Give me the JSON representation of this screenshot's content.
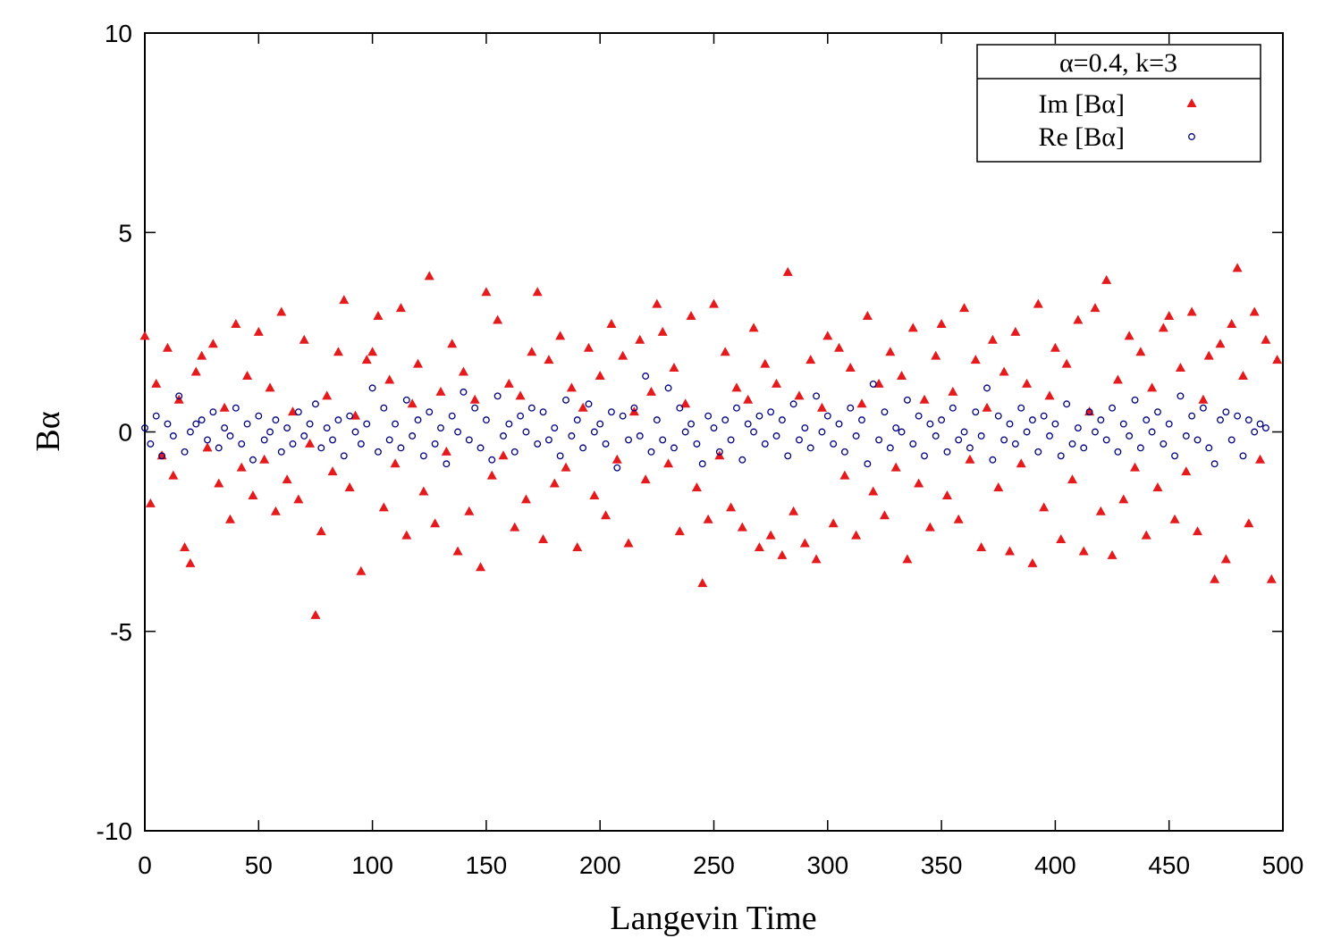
{
  "chart_data": {
    "type": "scatter",
    "xlabel": "Langevin Time",
    "ylabel": "Bα",
    "legend_title": "α=0.4, k=3",
    "legend": "top-right",
    "xlim": [
      0,
      500
    ],
    "xticks": [
      0,
      50,
      100,
      150,
      200,
      250,
      300,
      350,
      400,
      450,
      500
    ],
    "ylim": [
      -10,
      10
    ],
    "yticks": [
      -10,
      -5,
      0,
      5,
      10
    ],
    "x": [
      0,
      2.5,
      5,
      7.5,
      10,
      12.5,
      15,
      17.5,
      20,
      22.5,
      25,
      27.5,
      30,
      32.5,
      35,
      37.5,
      40,
      42.5,
      45,
      47.5,
      50,
      52.5,
      55,
      57.5,
      60,
      62.5,
      65,
      67.5,
      70,
      72.5,
      75,
      77.5,
      80,
      82.5,
      85,
      87.5,
      90,
      92.5,
      95,
      97.5,
      100,
      102.5,
      105,
      107.5,
      110,
      112.5,
      115,
      117.5,
      120,
      122.5,
      125,
      127.5,
      130,
      132.5,
      135,
      137.5,
      140,
      142.5,
      145,
      147.5,
      150,
      152.5,
      155,
      157.5,
      160,
      162.5,
      165,
      167.5,
      170,
      172.5,
      175,
      177.5,
      180,
      182.5,
      185,
      187.5,
      190,
      192.5,
      195,
      197.5,
      200,
      202.5,
      205,
      207.5,
      210,
      212.5,
      215,
      217.5,
      220,
      222.5,
      225,
      227.5,
      230,
      232.5,
      235,
      237.5,
      240,
      242.5,
      245,
      247.5,
      250,
      252.5,
      255,
      257.5,
      260,
      262.5,
      265,
      267.5,
      270,
      272.5,
      275,
      277.5,
      280,
      282.5,
      285,
      287.5,
      290,
      292.5,
      295,
      297.5,
      300,
      302.5,
      305,
      307.5,
      310,
      312.5,
      315,
      317.5,
      320,
      322.5,
      325,
      327.5,
      330,
      332.5,
      335,
      337.5,
      340,
      342.5,
      345,
      347.5,
      350,
      352.5,
      355,
      357.5,
      360,
      362.5,
      365,
      367.5,
      370,
      372.5,
      375,
      377.5,
      380,
      382.5,
      385,
      387.5,
      390,
      392.5,
      395,
      397.5,
      400,
      402.5,
      405,
      407.5,
      410,
      412.5,
      415,
      417.5,
      420,
      422.5,
      425,
      427.5,
      430,
      432.5,
      435,
      437.5,
      440,
      442.5,
      445,
      447.5,
      450,
      452.5,
      455,
      457.5,
      460,
      462.5,
      465,
      467.5,
      470,
      472.5,
      475,
      477.5,
      480,
      482.5,
      485,
      487.5,
      490,
      492.5,
      495,
      497.5
    ],
    "series": [
      {
        "name": "Im [Bα]",
        "color": "#e41a1c",
        "marker": "triangle",
        "values": [
          2.4,
          -1.8,
          1.2,
          -0.6,
          2.1,
          -1.1,
          0.8,
          -2.9,
          -3.3,
          1.5,
          1.9,
          -0.4,
          2.2,
          -1.3,
          0.6,
          -2.2,
          2.7,
          -0.9,
          1.4,
          -1.6,
          2.5,
          -0.7,
          1.1,
          -2.0,
          3.0,
          -1.2,
          0.5,
          -1.7,
          2.3,
          -0.3,
          -4.6,
          -2.5,
          0.9,
          -1.0,
          2.0,
          3.3,
          -1.4,
          0.4,
          -3.5,
          1.8,
          2.0,
          2.9,
          -1.9,
          1.3,
          -0.8,
          3.1,
          -2.6,
          0.7,
          1.7,
          -1.5,
          3.9,
          -2.3,
          1.0,
          -0.5,
          2.2,
          -3.0,
          1.5,
          -2.0,
          0.8,
          -3.4,
          3.5,
          -1.1,
          2.8,
          -0.6,
          1.2,
          -2.4,
          0.9,
          -1.7,
          2.0,
          3.5,
          -2.7,
          1.8,
          -1.3,
          2.4,
          -0.9,
          1.1,
          -2.9,
          0.6,
          2.1,
          -1.6,
          1.4,
          -2.1,
          2.7,
          -0.7,
          1.9,
          -2.8,
          0.5,
          2.3,
          -1.2,
          1.0,
          3.2,
          2.5,
          -0.8,
          1.6,
          -2.5,
          0.7,
          2.9,
          -1.4,
          -3.8,
          -2.2,
          3.2,
          -0.6,
          2.0,
          -1.9,
          1.1,
          -2.4,
          0.8,
          2.6,
          -2.9,
          1.7,
          -2.6,
          1.2,
          -3.1,
          4.0,
          -2.0,
          0.9,
          -2.8,
          1.8,
          -3.2,
          0.6,
          2.4,
          -2.3,
          2.1,
          -1.1,
          1.6,
          -2.6,
          0.7,
          2.9,
          -1.5,
          1.2,
          -2.1,
          2.0,
          -0.9,
          1.4,
          -3.2,
          2.6,
          -1.3,
          0.8,
          -2.4,
          1.9,
          2.7,
          -1.6,
          1.0,
          -2.2,
          3.1,
          -0.7,
          1.8,
          -2.9,
          0.6,
          2.3,
          -1.4,
          1.5,
          -3.0,
          2.5,
          -0.8,
          1.2,
          -3.3,
          3.2,
          -1.9,
          0.9,
          2.1,
          -2.7,
          1.7,
          -1.2,
          2.8,
          -3.0,
          0.5,
          3.1,
          -2.0,
          3.8,
          -3.1,
          1.3,
          -1.7,
          2.4,
          -0.9,
          2.0,
          -2.6,
          1.1,
          -1.4,
          2.6,
          2.9,
          -2.2,
          1.6,
          -1.0,
          3.0,
          -2.5,
          0.8,
          1.9,
          -3.7,
          2.2,
          -3.2,
          2.7,
          4.1,
          1.4,
          -2.3,
          3.0,
          -0.7,
          2.3,
          -3.7,
          1.8
        ]
      },
      {
        "name": "Re [Bα]",
        "color": "#000080",
        "marker": "circle",
        "values": [
          0.1,
          -0.3,
          0.4,
          -0.6,
          0.2,
          -0.1,
          0.9,
          -0.5,
          0.0,
          0.2,
          0.3,
          -0.2,
          0.5,
          -0.4,
          0.1,
          -0.1,
          0.6,
          -0.3,
          0.2,
          -0.7,
          0.4,
          -0.2,
          0.0,
          0.3,
          -0.5,
          0.1,
          -0.3,
          0.5,
          -0.1,
          0.2,
          0.7,
          -0.4,
          0.1,
          -0.2,
          0.3,
          -0.6,
          0.4,
          0.0,
          -0.3,
          0.2,
          1.1,
          -0.5,
          0.6,
          -0.2,
          0.2,
          -0.4,
          0.8,
          -0.1,
          0.3,
          -0.6,
          0.5,
          -0.3,
          0.1,
          -0.8,
          0.4,
          0.0,
          1.0,
          -0.2,
          0.6,
          -0.4,
          0.3,
          -0.7,
          0.9,
          -0.1,
          0.2,
          -0.5,
          0.4,
          0.0,
          0.6,
          -0.3,
          0.5,
          -0.2,
          0.1,
          -0.6,
          0.8,
          -0.1,
          0.3,
          -0.4,
          0.7,
          0.0,
          0.2,
          -0.3,
          0.5,
          -0.9,
          0.4,
          -0.2,
          0.6,
          -0.1,
          1.4,
          -0.5,
          0.3,
          -0.2,
          1.1,
          -0.4,
          0.6,
          0.0,
          0.2,
          -0.3,
          -0.8,
          0.4,
          0.1,
          -0.5,
          0.3,
          -0.2,
          0.6,
          -0.7,
          0.2,
          0.0,
          0.4,
          -0.3,
          0.5,
          -0.1,
          0.3,
          -0.6,
          0.7,
          -0.2,
          0.1,
          -0.4,
          0.9,
          0.0,
          0.4,
          -0.3,
          0.2,
          -0.5,
          0.6,
          -0.1,
          0.3,
          -0.8,
          1.2,
          -0.2,
          0.5,
          -0.4,
          0.1,
          0.0,
          0.8,
          -0.3,
          0.4,
          -0.6,
          0.2,
          -0.1,
          0.3,
          -0.5,
          0.6,
          -0.2,
          0.0,
          -0.4,
          0.5,
          -0.1,
          1.1,
          -0.7,
          0.4,
          -0.2,
          0.2,
          -0.3,
          0.6,
          0.0,
          0.3,
          -0.5,
          0.4,
          -0.1,
          0.2,
          -0.6,
          0.7,
          -0.3,
          0.1,
          -0.4,
          0.5,
          0.0,
          0.3,
          -0.2,
          0.6,
          -0.5,
          0.2,
          -0.1,
          0.8,
          -0.4,
          0.3,
          0.0,
          0.5,
          -0.3,
          0.2,
          -0.6,
          0.9,
          -0.1,
          0.4,
          -0.2,
          0.6,
          -0.4,
          -0.8,
          0.3,
          0.5,
          -0.2,
          0.4,
          -0.6,
          0.3,
          0.0,
          0.2,
          0.1
        ]
      }
    ]
  }
}
